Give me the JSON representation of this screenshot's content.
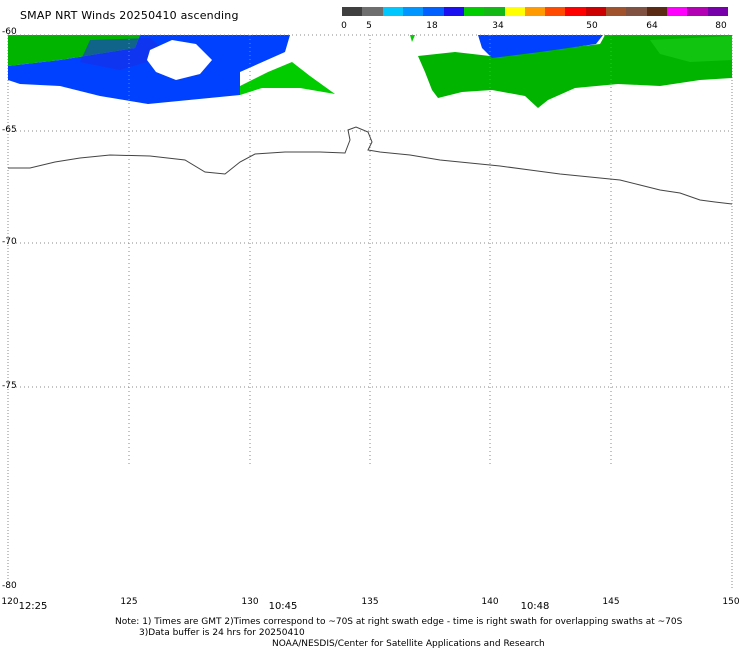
{
  "title": "SMAP NRT Winds 20250410 ascending",
  "colorbar": {
    "labels": [
      "0",
      "5",
      "18",
      "34",
      "50",
      "64",
      "80"
    ],
    "segments": [
      "#3f3f3f",
      "#6e6e6e",
      "#00c8ff",
      "#0096ff",
      "#0060ff",
      "#1c10f0",
      "#00cc00",
      "#14b814",
      "#ffff00",
      "#ff9a00",
      "#ff4a00",
      "#ff0000",
      "#cc0000",
      "#a0522d",
      "#805040",
      "#5a2a14",
      "#ff00ff",
      "#b400b4",
      "#7800aa"
    ]
  },
  "axes": {
    "lat_labels": [
      "-60",
      "-65",
      "-70",
      "-75",
      "-80"
    ],
    "lon_labels": [
      "120",
      "125",
      "130",
      "135",
      "140",
      "145",
      "150"
    ],
    "lon_range": [
      120,
      150
    ],
    "lat_range": [
      -60,
      -80
    ]
  },
  "times": [
    "12:25",
    "10:45",
    "10:48"
  ],
  "notes": {
    "line1": "Note: 1) Times are GMT 2)Times correspond to ~70S at right swath edge - time is right swath for overlapping swaths at ~70S",
    "line2": "3)Data buffer is 24 hrs for 20250410",
    "line3": "NOAA/NESDIS/Center for Satellite Applications and Research"
  },
  "colors": {
    "land": "#ffffff",
    "strong_wind": "#00b400",
    "moderate_wind": "#0040ff",
    "grid": "#888888"
  }
}
